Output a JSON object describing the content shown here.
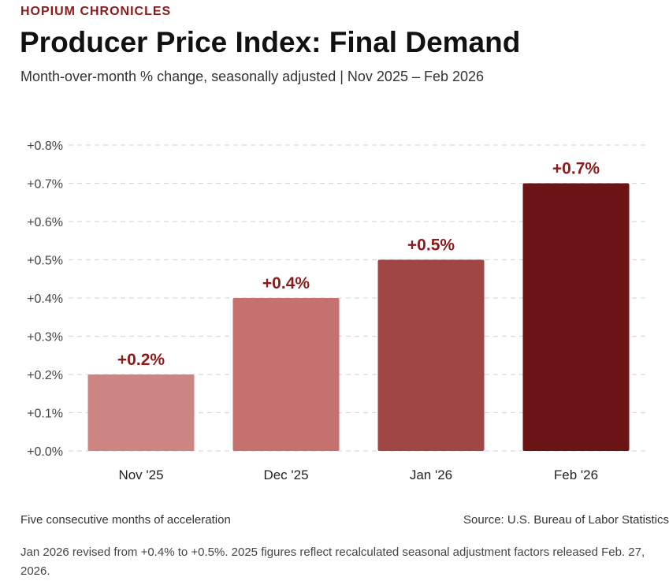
{
  "header": {
    "kicker": "HOPIUM CHRONICLES",
    "title": "Producer Price Index: Final Demand",
    "subtitle": "Month-over-month % change, seasonally adjusted  |  Nov 2025 – Feb 2026"
  },
  "chart_data": {
    "type": "bar",
    "title": "Producer Price Index: Final Demand",
    "subtitle": "Month-over-month % change, seasonally adjusted  |  Nov 2025 – Feb 2026",
    "xlabel": "",
    "ylabel": "",
    "categories": [
      "Nov '25",
      "Dec '25",
      "Jan '26",
      "Feb '26"
    ],
    "values": [
      0.2,
      0.4,
      0.5,
      0.7
    ],
    "value_labels": [
      "+0.2%",
      "+0.4%",
      "+0.5%",
      "+0.7%"
    ],
    "bar_colors": [
      "#cd8584",
      "#c57170",
      "#a04645",
      "#6b1416"
    ],
    "label_color": "#8b1a1a",
    "ylim": [
      0,
      0.8
    ],
    "yticks": [
      0.0,
      0.1,
      0.2,
      0.3,
      0.4,
      0.5,
      0.6,
      0.7,
      0.8
    ],
    "ytick_labels": [
      "+0.0%",
      "+0.1%",
      "+0.2%",
      "+0.3%",
      "+0.4%",
      "+0.5%",
      "+0.6%",
      "+0.7%",
      "+0.8%"
    ],
    "grid": true
  },
  "footer": {
    "left": "Five consecutive months of acceleration",
    "right": "Source: U.S. Bureau of Labor Statistics",
    "note": "Jan 2026 revised from +0.4% to +0.5%. 2025 figures reflect recalculated seasonal adjustment factors released Feb. 27, 2026."
  }
}
